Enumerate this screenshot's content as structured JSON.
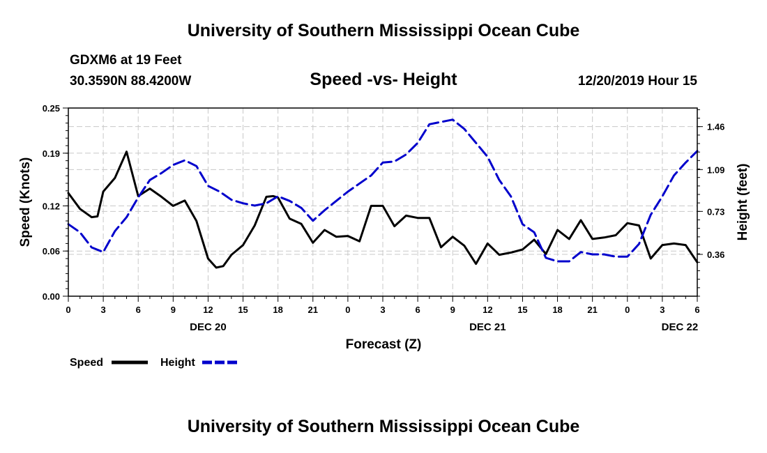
{
  "header": {
    "title": "University of Southern Mississippi Ocean Cube",
    "station": "GDXM6 at 19 Feet",
    "coords": "30.3590N 88.4200W",
    "chart_title": "Speed -vs- Height",
    "date": "12/20/2019 Hour 15"
  },
  "footer": {
    "title": "University of Southern Mississippi Ocean Cube"
  },
  "legend": {
    "speed_label": "Speed",
    "height_label": "Height"
  },
  "colors": {
    "speed": "#000000",
    "height": "#0000cc",
    "grid": "#c8c8c8"
  },
  "chart_data": {
    "type": "line",
    "title": "Speed -vs- Height",
    "xlabel": "Forecast (Z)",
    "ylabel": "Speed (Knots)",
    "y2label": "Height (feet)",
    "x_hours_from_0z_dec20": [
      0,
      54
    ],
    "x_tick_labels": [
      "0",
      "3",
      "6",
      "9",
      "12",
      "15",
      "18",
      "21",
      "0",
      "3",
      "6",
      "9",
      "12",
      "15",
      "18",
      "21",
      "0",
      "3",
      "6"
    ],
    "day_labels": [
      {
        "label": "DEC 20",
        "hour": 12
      },
      {
        "label": "DEC 21",
        "hour": 36
      },
      {
        "label": "DEC 22",
        "hour": 52.5
      }
    ],
    "ylim": [
      0,
      0.25
    ],
    "y_ticks": [
      0.0,
      0.06,
      0.12,
      0.19,
      0.25
    ],
    "y_tick_labels": [
      "0.00",
      "0.06",
      "0.12",
      "0.19",
      "0.25"
    ],
    "y2lim": [
      0.0,
      1.62
    ],
    "y2_ticks": [
      0.36,
      0.73,
      1.09,
      1.46
    ],
    "y2_tick_labels": [
      "0.36",
      "0.73",
      "1.09",
      "1.46"
    ],
    "grid": true,
    "series": [
      {
        "name": "Speed",
        "axis": "left",
        "style": "solid",
        "x": [
          0,
          1,
          2,
          2.5,
          3,
          4,
          5,
          6,
          7,
          8,
          9,
          10,
          11,
          12,
          12.7,
          13.3,
          14,
          15,
          16,
          17,
          17.6,
          18,
          19,
          20,
          21,
          22,
          23,
          24,
          25,
          26,
          27,
          28,
          29,
          30,
          31,
          32,
          33,
          34,
          35,
          36,
          37,
          38,
          39,
          40,
          41,
          42,
          43,
          44,
          45,
          46,
          47,
          48,
          49,
          50,
          51,
          52,
          53,
          54
        ],
        "values": [
          0.137,
          0.116,
          0.105,
          0.106,
          0.139,
          0.157,
          0.192,
          0.133,
          0.143,
          0.132,
          0.12,
          0.127,
          0.1,
          0.05,
          0.038,
          0.04,
          0.055,
          0.068,
          0.094,
          0.132,
          0.133,
          0.131,
          0.103,
          0.096,
          0.071,
          0.088,
          0.079,
          0.08,
          0.073,
          0.12,
          0.12,
          0.093,
          0.107,
          0.104,
          0.104,
          0.065,
          0.079,
          0.067,
          0.043,
          0.07,
          0.055,
          0.058,
          0.062,
          0.075,
          0.056,
          0.088,
          0.076,
          0.101,
          0.076,
          0.078,
          0.081,
          0.097,
          0.094,
          0.05,
          0.068,
          0.07,
          0.068,
          0.045
        ]
      },
      {
        "name": "Height",
        "axis": "right",
        "style": "dashed",
        "x": [
          0,
          1,
          2,
          3,
          4,
          5,
          6,
          7,
          8,
          9,
          10,
          11,
          12,
          13,
          14,
          15,
          16,
          17,
          18,
          19,
          20,
          21,
          22,
          23,
          24,
          25,
          26,
          27,
          28,
          29,
          30,
          31,
          32,
          33,
          34,
          35,
          36,
          37,
          38,
          39,
          40,
          41,
          42,
          43,
          44,
          45,
          46,
          47,
          48,
          49,
          50,
          51,
          52,
          53,
          54
        ],
        "values": [
          0.62,
          0.55,
          0.42,
          0.38,
          0.56,
          0.68,
          0.85,
          1.0,
          1.06,
          1.13,
          1.17,
          1.12,
          0.95,
          0.9,
          0.83,
          0.8,
          0.78,
          0.8,
          0.86,
          0.82,
          0.76,
          0.65,
          0.74,
          0.82,
          0.9,
          0.97,
          1.04,
          1.15,
          1.16,
          1.22,
          1.32,
          1.48,
          1.5,
          1.52,
          1.44,
          1.32,
          1.2,
          1.0,
          0.86,
          0.62,
          0.55,
          0.33,
          0.3,
          0.3,
          0.38,
          0.36,
          0.36,
          0.34,
          0.34,
          0.45,
          0.7,
          0.86,
          1.04,
          1.15,
          1.25
        ]
      }
    ]
  }
}
